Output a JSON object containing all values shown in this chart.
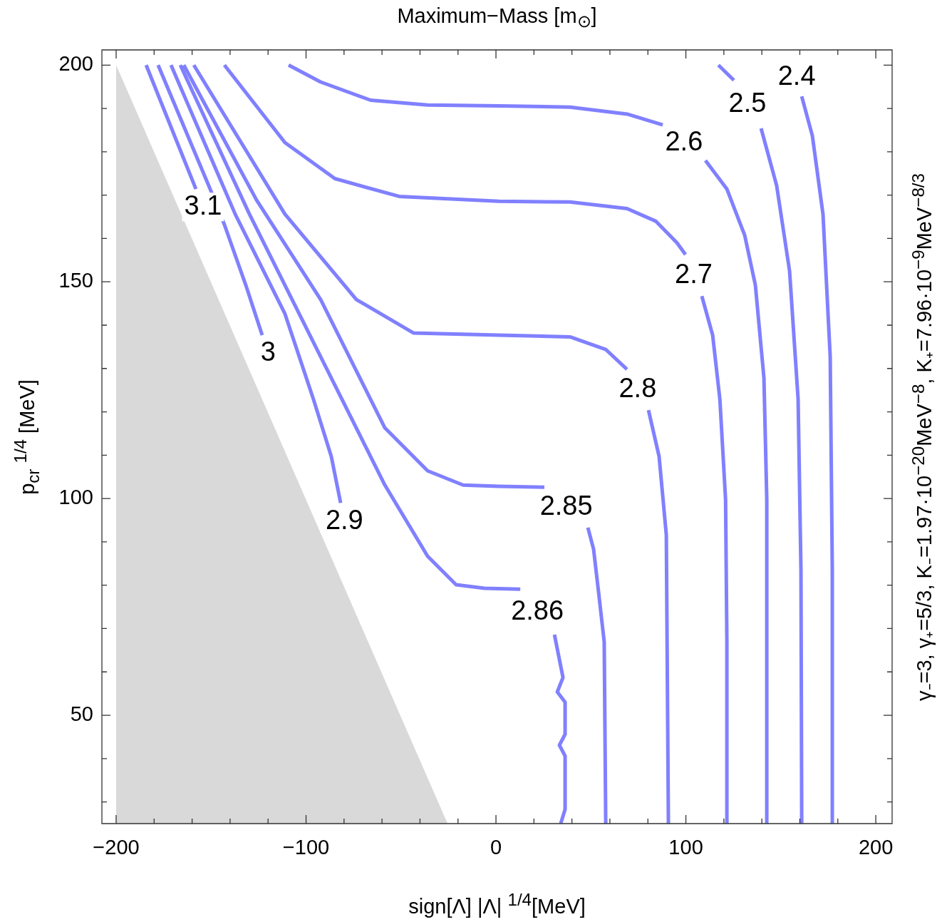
{
  "chart_data": {
    "type": "line",
    "title": "Maximum−Mass [m$_{⊙}$]",
    "xlabel": "sign[Λ] |Λ| $^{1/4}$[MeV]",
    "ylabel": "p$_{cr}$ $^{1/4}$ [MeV]",
    "y2label": "γ₋=3, γ₊=5/3, K₋=1.97·10$^{−20}$MeV$^{−8}$, K₊=7.96·10$^{−9}$MeV$^{−8/3}$",
    "xlim": [
      -207.5,
      208.6
    ],
    "ylim": [
      25,
      203.5
    ],
    "xticks": [
      {
        "value": -200,
        "label": "−200"
      },
      {
        "value": -180,
        "label": null
      },
      {
        "value": -160,
        "label": null
      },
      {
        "value": -140,
        "label": null
      },
      {
        "value": -120,
        "label": null
      },
      {
        "value": -100,
        "label": "−100"
      },
      {
        "value": -80,
        "label": null
      },
      {
        "value": -60,
        "label": null
      },
      {
        "value": -40,
        "label": null
      },
      {
        "value": -20,
        "label": null
      },
      0,
      {
        "value": 20,
        "label": null
      },
      {
        "value": 40,
        "label": null
      },
      {
        "value": 60,
        "label": null
      },
      {
        "value": 80,
        "label": null
      },
      100,
      {
        "value": 120,
        "label": null
      },
      {
        "value": 140,
        "label": null
      },
      {
        "value": 160,
        "label": null
      },
      {
        "value": 180,
        "label": null
      },
      200
    ],
    "yticks": [
      {
        "value": 30,
        "label": null
      },
      {
        "value": 40,
        "label": null
      },
      50,
      {
        "value": 60,
        "label": null
      },
      {
        "value": 70,
        "label": null
      },
      {
        "value": 80,
        "label": null
      },
      {
        "value": 90,
        "label": null
      },
      100,
      {
        "value": 110,
        "label": null
      },
      {
        "value": 120,
        "label": null
      },
      {
        "value": 130,
        "label": null
      },
      {
        "value": 140,
        "label": null
      },
      150,
      {
        "value": 160,
        "label": null
      },
      {
        "value": 170,
        "label": null
      },
      {
        "value": 180,
        "label": null
      },
      {
        "value": 190,
        "label": null
      },
      200
    ],
    "marker": "none",
    "series": [
      {
        "type": "area",
        "color": "#d9d9d9",
        "x": [
          -200,
          -25.5
        ],
        "values": [
          200,
          25
        ]
      },
      {
        "name": "3.1",
        "color": "#8080ff",
        "x": [
          -184.2,
          -171.1,
          -158.0
        ],
        "values": [
          200,
          185.7,
          171.4
        ]
      },
      {
        "name": "3",
        "color": "#8080ff",
        "x": [
          -177.9,
          -150.5,
          -143.0,
          -131.7,
          -123.1
        ],
        "values": [
          200,
          171.4,
          163.2,
          149.2,
          137.7
        ]
      },
      {
        "name": "2.9",
        "color": "#8080ff",
        "x": [
          -171.1,
          -137.3,
          -111.1,
          -96.1,
          -86.7,
          -81.8
        ],
        "values": [
          200,
          165.6,
          142.6,
          122.9,
          109.7,
          99.0
        ]
      },
      {
        "name": "2.86",
        "color": "#8080ff",
        "x": [
          -166.2,
          -129.8,
          -92.3,
          -58.5,
          -36.0,
          -21.0,
          -6.0,
          12.8,
          21.8,
          30.8,
          35.3,
          32.3,
          36.4,
          36.4,
          33.4,
          36.4,
          36.4,
          34.1
        ],
        "values": [
          200,
          165.6,
          132.7,
          103.1,
          86.7,
          80.1,
          79.3,
          79.1,
          null,
          68.6,
          58.7,
          55.4,
          53.0,
          45.6,
          43.1,
          40.6,
          28.3,
          25.0
        ]
      },
      {
        "name": "2.85",
        "color": "#8080ff",
        "x": [
          -164.4,
          -126.1,
          -92.3,
          -58.5,
          -36.0,
          -17.3,
          1.5,
          25.5,
          37.0,
          48.4,
          51.4,
          54.0,
          57.0,
          57.8
        ],
        "values": [
          200,
          168.9,
          145.9,
          116.3,
          106.4,
          103.1,
          102.8,
          102.6,
          null,
          93.3,
          88.3,
          78.5,
          66.9,
          25.0
        ]
      },
      {
        "name": "2.8",
        "color": "#8080ff",
        "x": [
          -159.1,
          -111.1,
          -73.5,
          -43.5,
          1.5,
          39.0,
          57.8,
          69.0,
          74.6,
          80.3,
          85.9,
          89.7,
          90.8
        ],
        "values": [
          200,
          165.6,
          145.9,
          138.2,
          137.7,
          137.3,
          134.4,
          129.8,
          null,
          120.4,
          109.7,
          91.6,
          25.0
        ]
      },
      {
        "name": "2.7",
        "color": "#8080ff",
        "x": [
          -143.0,
          -111.1,
          -84.8,
          -51.0,
          1.5,
          39.0,
          69.0,
          84.1,
          95.3,
          99.8,
          104.1,
          108.4,
          114.1,
          117.9,
          120.9,
          121.6,
          121.6
        ],
        "values": [
          200,
          182.1,
          173.8,
          169.7,
          168.6,
          168.4,
          166.9,
          164.0,
          159.0,
          156.3,
          null,
          146.7,
          137.7,
          122.9,
          99.8,
          66.9,
          25.0
        ]
      },
      {
        "name": "2.6",
        "color": "#8080ff",
        "x": [
          -109.2,
          -92.3,
          -66.0,
          -36.0,
          1.5,
          39.0,
          69.0,
          87.8,
          99.0,
          110.3,
          121.6,
          131.0,
          136.6,
          141.1,
          142.6,
          142.6
        ],
        "values": [
          200,
          196.1,
          191.9,
          190.8,
          190.6,
          190.3,
          188.7,
          186.2,
          null,
          178.0,
          171.4,
          160.7,
          149.2,
          127.8,
          99.8,
          25.0
        ]
      },
      {
        "name": "2.5",
        "color": "#8080ff",
        "x": [
          117.1,
          125.3,
          132.4,
          139.6,
          147.8,
          154.6,
          159.1,
          160.6,
          161.0
        ],
        "values": [
          200,
          196.5,
          null,
          185.4,
          172.2,
          152.5,
          122.9,
          83.4,
          25.0
        ]
      },
      {
        "name": "2.4",
        "color": "#8080ff",
        "x": [
          161.0,
          166.6,
          172.2,
          176.0,
          177.1,
          177.1
        ],
        "values": [
          192.8,
          183.7,
          165.6,
          132.7,
          83.4,
          25.0
        ]
      }
    ]
  }
}
